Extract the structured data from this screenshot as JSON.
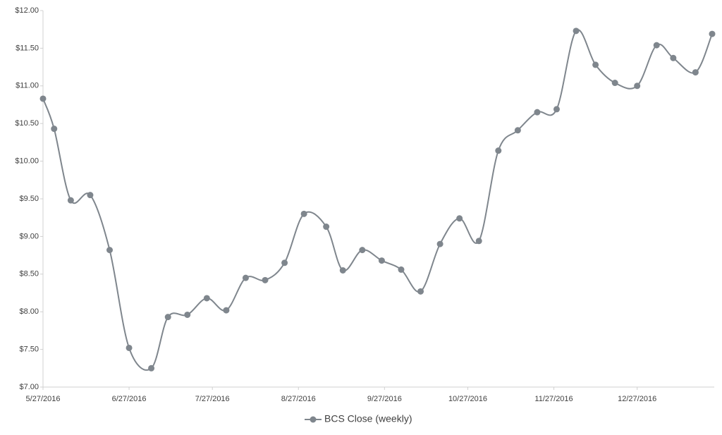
{
  "chart_data": {
    "type": "line",
    "x": [
      "5/27/2016",
      "5/31/2016",
      "6/6/2016",
      "6/13/2016",
      "6/20/2016",
      "6/27/2016",
      "7/5/2016",
      "7/11/2016",
      "7/18/2016",
      "7/25/2016",
      "8/1/2016",
      "8/8/2016",
      "8/15/2016",
      "8/22/2016",
      "8/29/2016",
      "9/6/2016",
      "9/12/2016",
      "9/19/2016",
      "9/26/2016",
      "10/3/2016",
      "10/10/2016",
      "10/17/2016",
      "10/24/2016",
      "10/31/2016",
      "11/7/2016",
      "11/14/2016",
      "11/21/2016",
      "11/28/2016",
      "12/5/2016",
      "12/12/2016",
      "12/19/2016",
      "12/27/2016",
      "1/3/2017",
      "1/9/2017",
      "1/17/2017",
      "1/23/2017"
    ],
    "series": [
      {
        "name": "BCS Close (weekly)",
        "color": "#7f868d",
        "values": [
          10.83,
          10.43,
          9.48,
          9.55,
          8.82,
          7.52,
          7.25,
          7.93,
          7.96,
          8.18,
          8.02,
          8.45,
          8.42,
          8.65,
          9.3,
          9.13,
          8.55,
          8.82,
          8.68,
          8.56,
          8.27,
          8.9,
          9.24,
          8.94,
          10.14,
          10.41,
          10.65,
          10.69,
          11.73,
          11.28,
          11.04,
          11.0,
          11.54,
          11.37,
          11.18,
          11.69
        ]
      }
    ],
    "xlim": [
      "5/27/2016",
      "1/23/2017"
    ],
    "xticks": [
      "5/27/2016",
      "6/27/2016",
      "7/27/2016",
      "8/27/2016",
      "9/27/2016",
      "10/27/2016",
      "11/27/2016",
      "12/27/2016"
    ],
    "ylim": [
      7,
      12
    ],
    "yticks": [
      {
        "value": 7,
        "label": "$7.00"
      },
      {
        "value": 7.5,
        "label": "$7.50"
      },
      {
        "value": 8,
        "label": "$8.00"
      },
      {
        "value": 8.5,
        "label": "$8.50"
      },
      {
        "value": 9,
        "label": "$9.00"
      },
      {
        "value": 9.5,
        "label": "$9.50"
      },
      {
        "value": 10,
        "label": "$10.00"
      },
      {
        "value": 10.5,
        "label": "$10.50"
      },
      {
        "value": 11,
        "label": "$11.00"
      },
      {
        "value": 11.5,
        "label": "$11.50"
      },
      {
        "value": 12,
        "label": "$12.00"
      }
    ],
    "grid": false,
    "legend": "bottom"
  }
}
